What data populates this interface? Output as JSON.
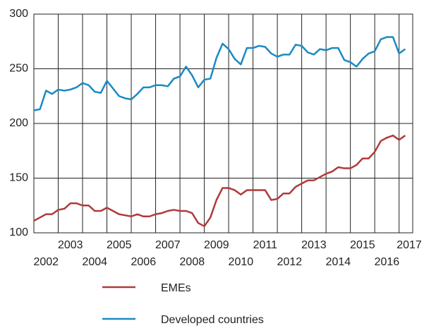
{
  "chart_data": {
    "type": "line",
    "x": [
      2002,
      2002.25,
      2002.5,
      2002.75,
      2003,
      2003.25,
      2003.5,
      2003.75,
      2004,
      2004.25,
      2004.5,
      2004.75,
      2005,
      2005.25,
      2005.5,
      2005.75,
      2006,
      2006.25,
      2006.5,
      2006.75,
      2007,
      2007.25,
      2007.5,
      2007.75,
      2008,
      2008.25,
      2008.5,
      2008.75,
      2009,
      2009.25,
      2009.5,
      2009.75,
      2010,
      2010.25,
      2010.5,
      2010.75,
      2011,
      2011.25,
      2011.5,
      2011.75,
      2012,
      2012.25,
      2012.5,
      2012.75,
      2013,
      2013.25,
      2013.5,
      2013.75,
      2014,
      2014.25,
      2014.5,
      2014.75,
      2015,
      2015.25,
      2015.5,
      2015.75,
      2016,
      2016.25,
      2016.5,
      2016.75,
      2017,
      2017.25
    ],
    "series": [
      {
        "name": "EMEs",
        "color": "#b03a3a",
        "values": [
          111,
          114,
          117,
          117,
          121,
          122,
          127,
          127,
          125,
          125,
          120,
          120,
          123,
          120,
          117,
          116,
          115,
          117,
          115,
          115,
          117,
          118,
          120,
          121,
          120,
          120,
          118,
          109,
          106,
          114,
          130,
          141,
          141,
          139,
          135,
          139,
          139,
          139,
          139,
          130,
          131,
          136,
          136,
          142,
          145,
          148,
          148,
          151,
          154,
          156,
          160,
          159,
          159,
          162,
          168,
          168,
          174,
          184,
          187,
          189,
          185,
          189
        ]
      },
      {
        "name": "Developed countries",
        "color": "#1a8ac4",
        "values": [
          212,
          213,
          230,
          227,
          231,
          230,
          231,
          233,
          237,
          235,
          229,
          228,
          239,
          232,
          225,
          223,
          222,
          227,
          233,
          233,
          235,
          235,
          234,
          241,
          243,
          252,
          244,
          233,
          240,
          241,
          260,
          273,
          268,
          259,
          254,
          269,
          269,
          271,
          270,
          264,
          261,
          263,
          263,
          272,
          271,
          265,
          263,
          268,
          267,
          269,
          269,
          258,
          256,
          252,
          259,
          264,
          266,
          277,
          279,
          279,
          264,
          268
        ]
      }
    ],
    "xlim": [
      2002,
      2017.56
    ],
    "xticks": [
      2002,
      2003,
      2004,
      2005,
      2006,
      2007,
      2008,
      2009,
      2010,
      2011,
      2012,
      2013,
      2014,
      2015,
      2016,
      2017
    ],
    "ylim": [
      100,
      300
    ],
    "yticks": [
      100,
      150,
      200,
      250,
      300
    ],
    "grid": true
  }
}
